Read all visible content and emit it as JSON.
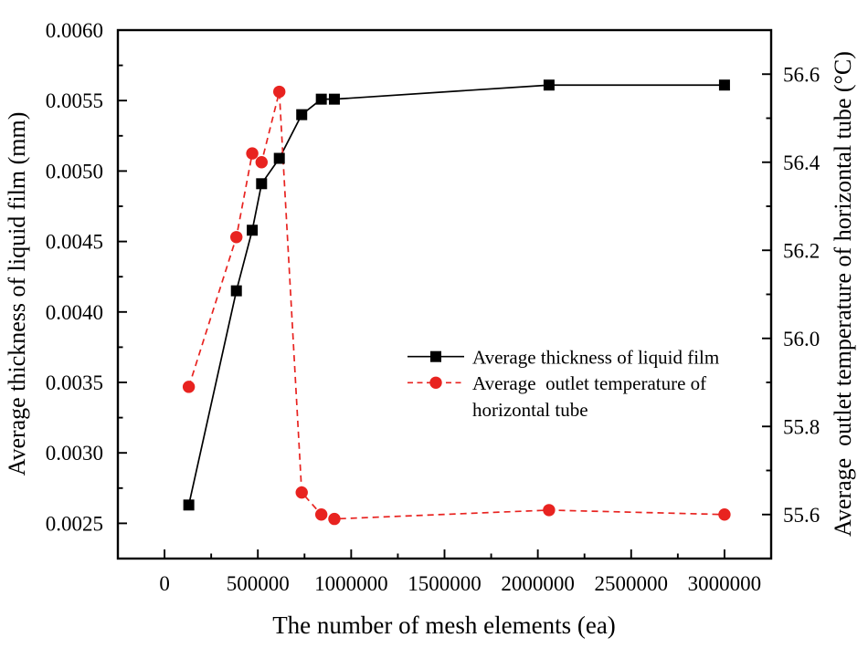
{
  "chart_data": {
    "type": "line",
    "title": "",
    "xlabel": "The number of mesh elements (ea)",
    "xlim": [
      -250000,
      3250000
    ],
    "x_major_ticks": [
      0,
      500000,
      1000000,
      1500000,
      2000000,
      2500000,
      3000000
    ],
    "x_major_tick_labels": [
      "0",
      "500000",
      "1000000",
      "1500000",
      "2000000",
      "2500000",
      "3000000"
    ],
    "x_minor_ticks": [
      250000,
      750000,
      1250000,
      1750000,
      2250000,
      2750000
    ],
    "grid": "off",
    "left_axis": {
      "label": "Average thickness of liquid film (mm)",
      "lim": [
        0.00225,
        0.006
      ],
      "major_ticks": [
        0.0025,
        0.003,
        0.0035,
        0.004,
        0.0045,
        0.005,
        0.0055,
        0.006
      ],
      "major_tick_labels": [
        "0.0025",
        "0.0030",
        "0.0035",
        "0.0040",
        "0.0045",
        "0.0050",
        "0.0055",
        "0.0060"
      ],
      "minor_ticks": [
        0.00275,
        0.00325,
        0.00375,
        0.00425,
        0.00475,
        0.00525,
        0.00575
      ]
    },
    "right_axis": {
      "label": "Average  outlet temperature of horizontal tube (°C)",
      "lim": [
        55.5,
        56.7
      ],
      "major_ticks": [
        55.6,
        55.8,
        56.0,
        56.2,
        56.4,
        56.6
      ],
      "major_tick_labels": [
        "55.6",
        "55.8",
        "56.0",
        "56.2",
        "56.4",
        "56.6"
      ],
      "minor_ticks": [
        55.7,
        55.9,
        56.1,
        56.3,
        56.5
      ]
    },
    "x": [
      130000,
      385000,
      470000,
      520000,
      615000,
      735000,
      840000,
      910000,
      2060000,
      3000000
    ],
    "series": [
      {
        "name": "Average thickness of liquid film",
        "axis": "left",
        "color": "#000000",
        "line": "solid",
        "marker": "square",
        "values": [
          0.00263,
          0.00415,
          0.00458,
          0.00491,
          0.00509,
          0.0054,
          0.00551,
          0.00551,
          0.00561,
          0.00561
        ]
      },
      {
        "name": "Average  outlet temperature of horizontal tube",
        "axis": "right",
        "color": "#e82320",
        "line": "dashed",
        "marker": "circle",
        "values": [
          55.89,
          56.23,
          56.42,
          56.4,
          56.56,
          55.65,
          55.6,
          55.59,
          55.61,
          55.6
        ]
      }
    ],
    "legend": {
      "position": "inside-center-right",
      "border": "none",
      "items": [
        {
          "series": 0,
          "lines": [
            "Average thickness of liquid film"
          ]
        },
        {
          "series": 1,
          "lines": [
            "Average  outlet temperature of",
            "horizontal tube"
          ]
        }
      ]
    },
    "colors": {
      "thickness_series": "#000000",
      "temperature_series": "#e82320",
      "axis": "#000000",
      "background": "#ffffff"
    }
  }
}
